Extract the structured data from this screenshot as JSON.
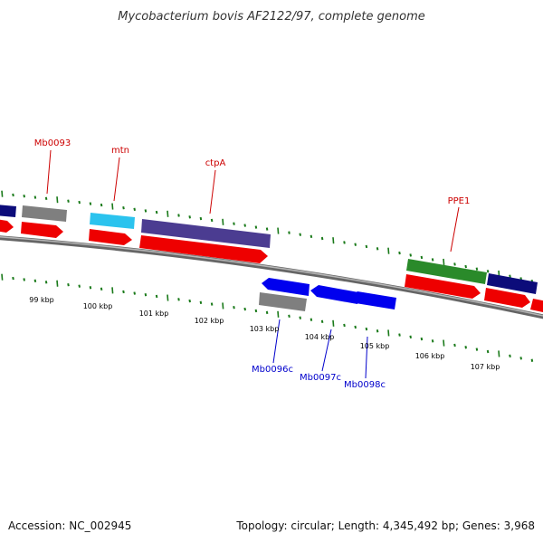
{
  "title": "Mycobacterium bovis AF2122/97, complete genome",
  "footer": {
    "accession": "Accession: NC_002945",
    "summary": "Topology: circular; Length: 4,345,492 bp; Genes: 3,968"
  },
  "colors": {
    "backbone": "#8c8c8c",
    "tick": "#1a7a1a",
    "fwd_cds": "#ee0000",
    "rev_cds": "#0000ee",
    "gray_gene": "#7f7f7f",
    "navy_gene": "#0c0c7a",
    "purple_gene": "#4b3c91",
    "cyan_gene": "#2bc3ee",
    "green_gene": "#2a8a2a",
    "fwd_label": "#cc0000",
    "rev_label": "#0000cc"
  },
  "kbp_labels": [
    "99 kbp",
    "100 kbp",
    "101 kbp",
    "102 kbp",
    "103 kbp",
    "104 kbp",
    "105 kbp",
    "106 kbp",
    "107 kbp"
  ],
  "gene_labels": {
    "forward": [
      "Mb0093",
      "mtn",
      "ctpA",
      "PPE1"
    ],
    "reverse": [
      "Mb0096c",
      "Mb0097c",
      "Mb0098c"
    ]
  }
}
